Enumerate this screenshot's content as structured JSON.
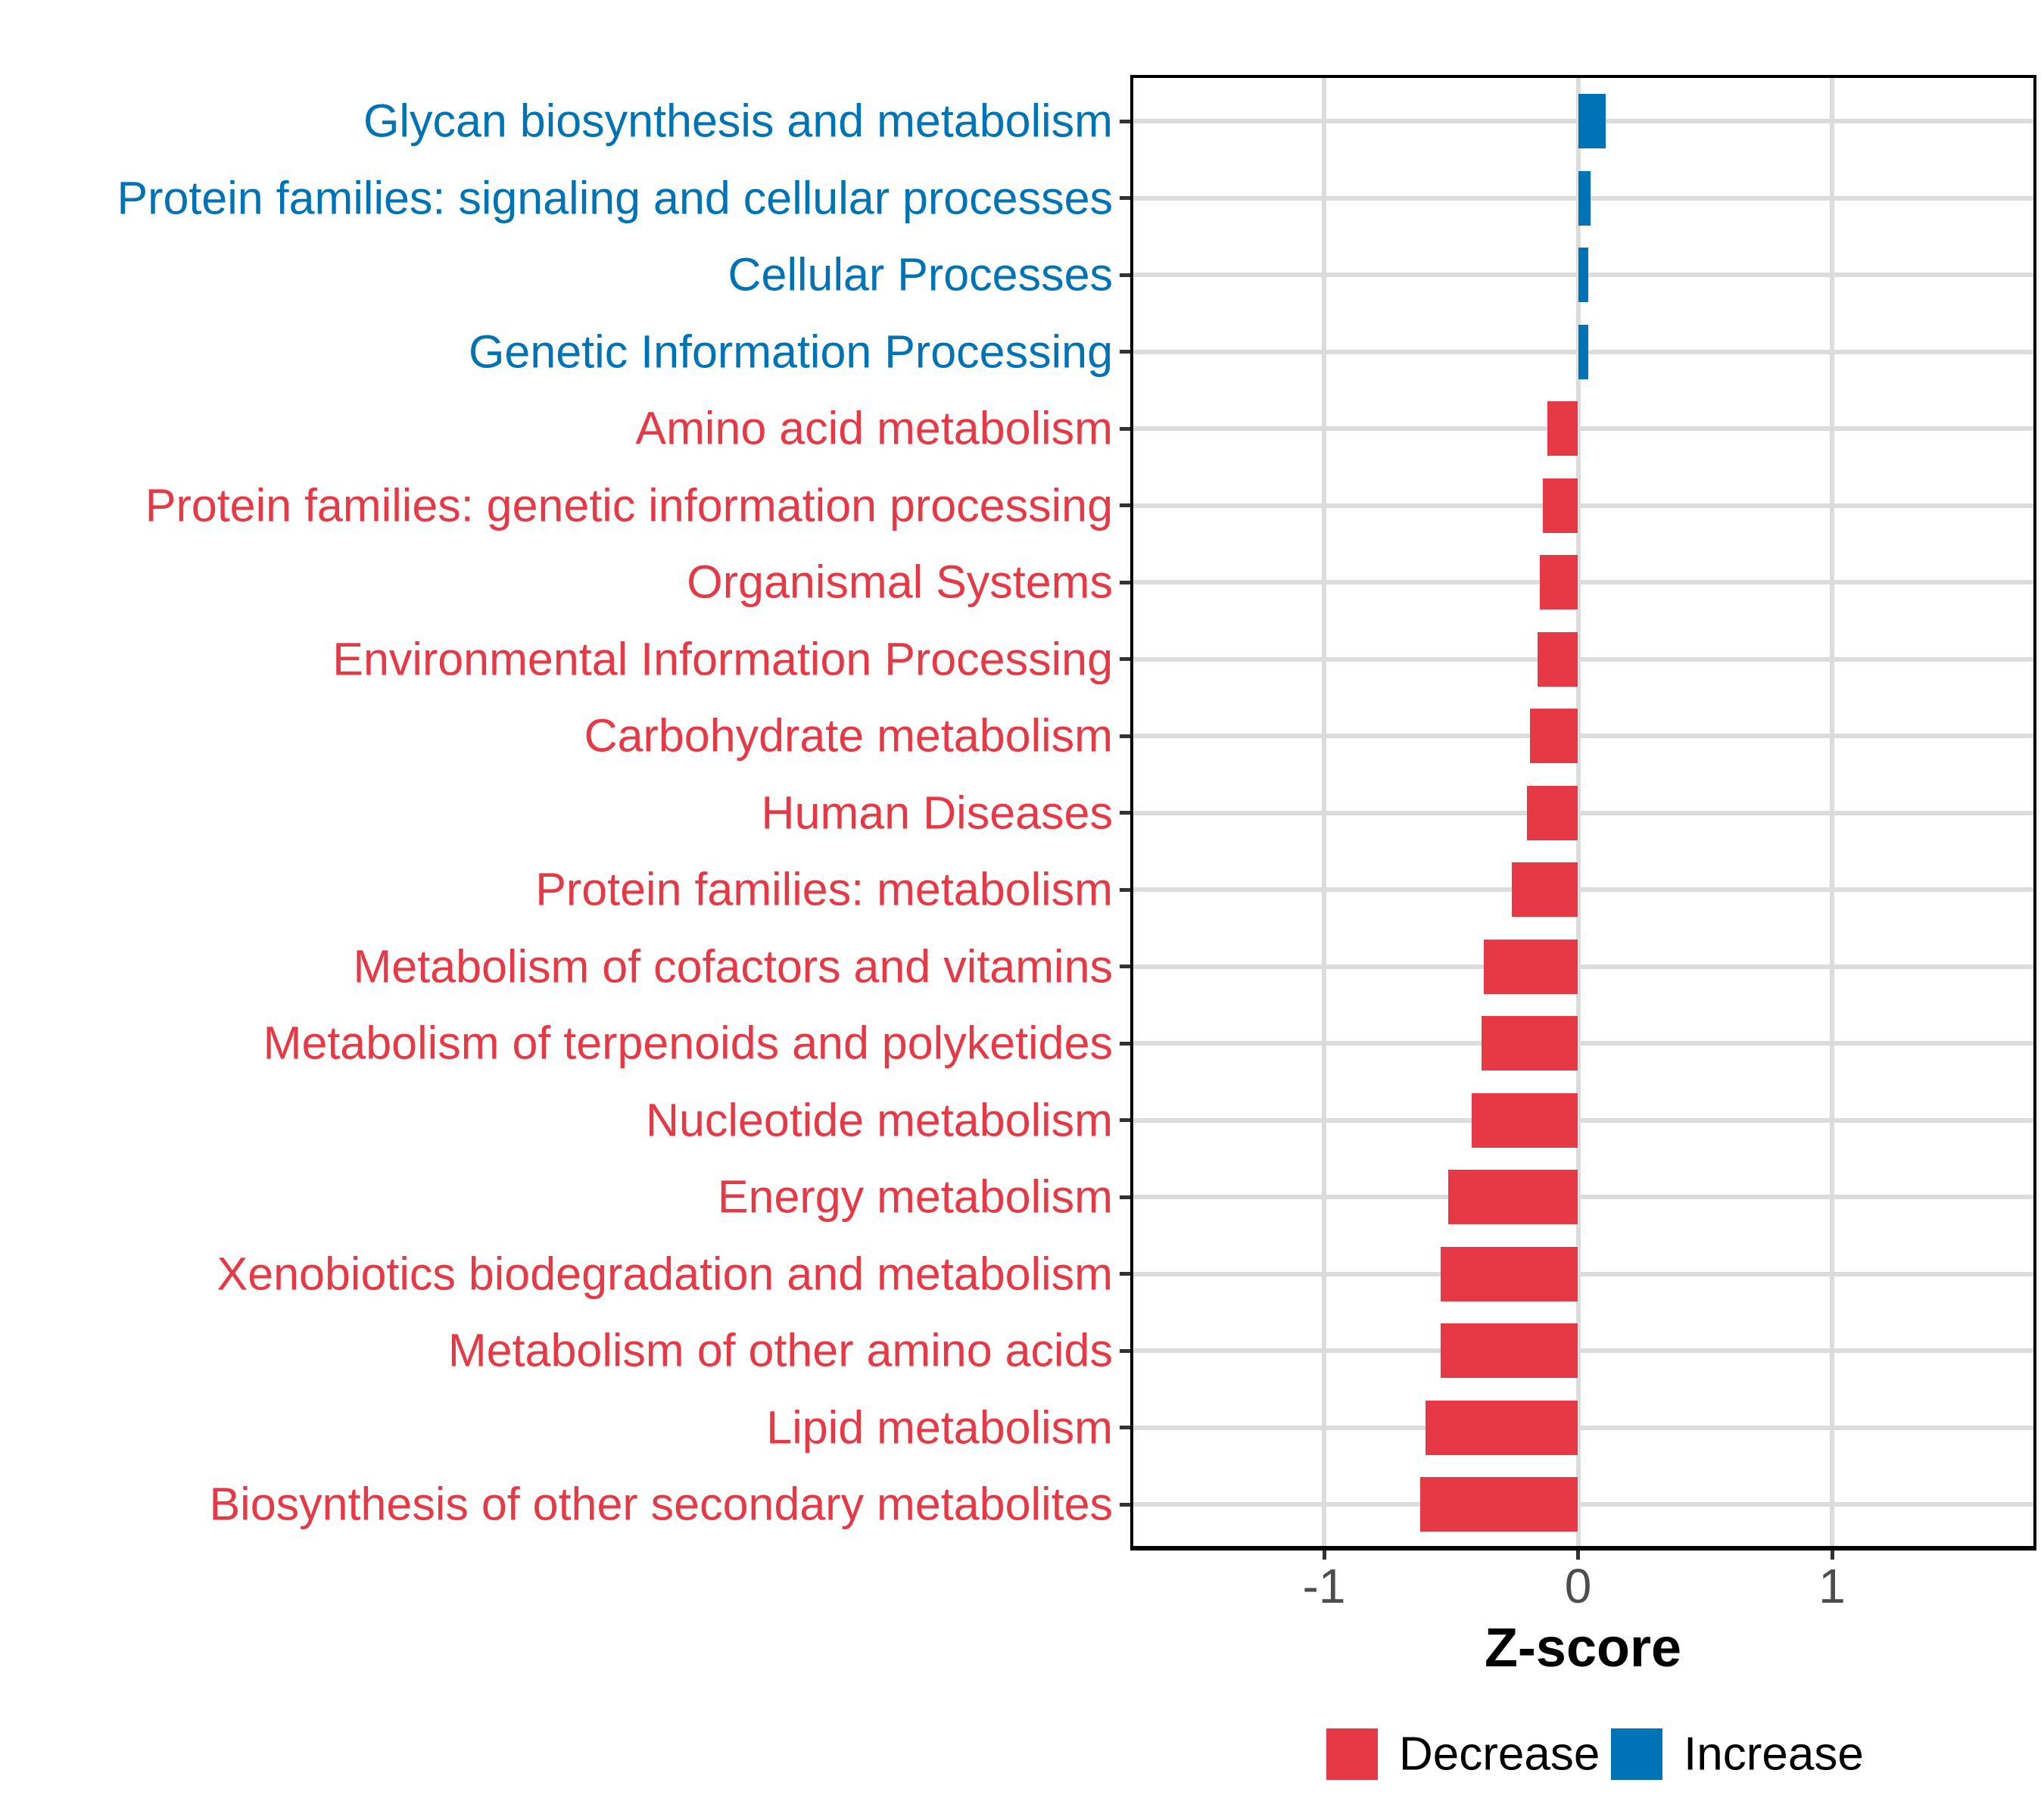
{
  "figure": {
    "background": "#FFFFFF"
  },
  "chart_data": {
    "type": "bar",
    "orientation": "horizontal",
    "title": "",
    "xlabel": "Z-score",
    "ylabel": "",
    "x_ticks": [
      "-1",
      "0",
      "1"
    ],
    "x_tick_values": [
      -1,
      0,
      1
    ],
    "xlim": [
      -1.77,
      1.8
    ],
    "grid": {
      "vertical_at_ticks": true,
      "horizontal_per_category": true,
      "minor": false
    },
    "legend_position": "bottom-right",
    "categories": [
      "Glycan biosynthesis and metabolism",
      "Protein families: signaling and cellular processes",
      "Cellular Processes",
      "Genetic Information Processing",
      "Amino acid metabolism",
      "Protein families: genetic information processing",
      "Organismal Systems",
      "Environmental Information Processing",
      "Carbohydrate metabolism",
      "Human Diseases",
      "Protein families: metabolism",
      "Metabolism of cofactors and vitamins",
      "Metabolism of terpenoids and polyketides",
      "Nucleotide metabolism",
      "Energy metabolism",
      "Xenobiotics biodegradation and metabolism",
      "Metabolism of other amino acids",
      "Lipid metabolism",
      "Biosynthesis of other secondary metabolites"
    ],
    "values": [
      0.11,
      0.05,
      0.04,
      0.04,
      -0.12,
      -0.14,
      -0.15,
      -0.16,
      -0.19,
      -0.2,
      -0.26,
      -0.37,
      -0.38,
      -0.42,
      -0.51,
      -0.54,
      -0.54,
      -0.6,
      -0.62
    ],
    "directions": [
      "Increase",
      "Increase",
      "Increase",
      "Increase",
      "Decrease",
      "Decrease",
      "Decrease",
      "Decrease",
      "Decrease",
      "Decrease",
      "Decrease",
      "Decrease",
      "Decrease",
      "Decrease",
      "Decrease",
      "Decrease",
      "Decrease",
      "Decrease",
      "Decrease"
    ],
    "colors": {
      "Decrease": "#E63946",
      "Increase": "#0073B6"
    },
    "gridline_color": "#DCDCDC",
    "axis_tick_color": "#333333",
    "axis_text_color": "#4D4D4D",
    "panel_border_color": "#000000",
    "legend": {
      "entries": [
        {
          "label": "Decrease",
          "color": "#E63946"
        },
        {
          "label": "Increase",
          "color": "#0073B6"
        }
      ]
    }
  }
}
